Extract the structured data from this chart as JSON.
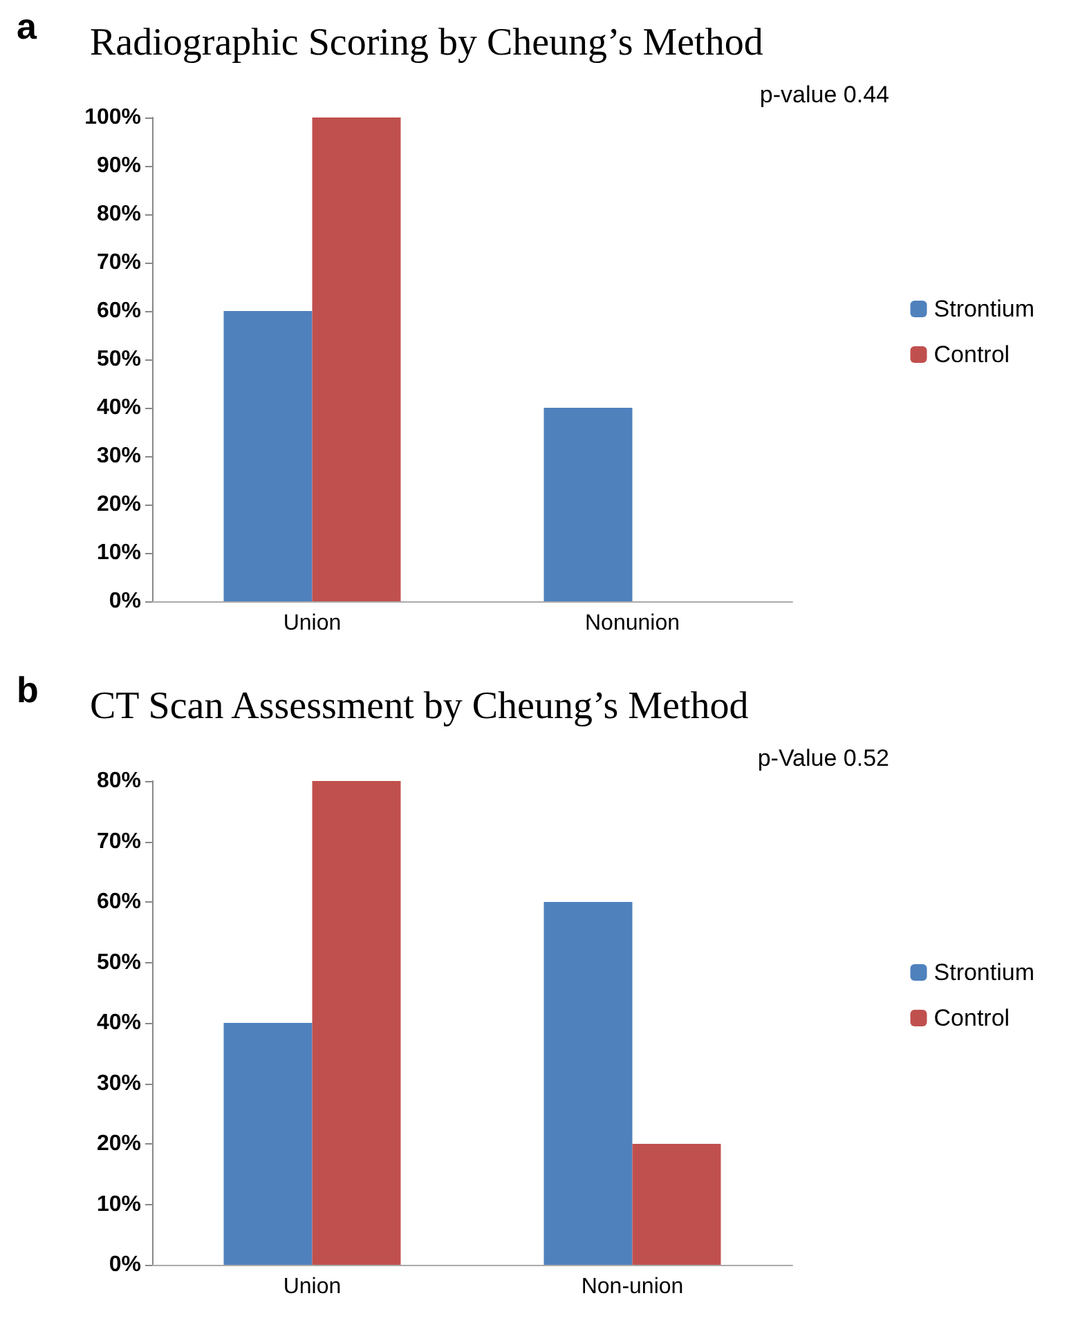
{
  "chart_data": [
    {
      "type": "bar",
      "title": "Radiographic Scoring by Cheung’s Method",
      "annotations": [
        "a",
        "p-value 0.44"
      ],
      "categories": [
        "Union",
        "Nonunion"
      ],
      "series": [
        {
          "name": "Strontium",
          "color": "#4f81bd",
          "values": [
            60,
            40
          ]
        },
        {
          "name": "Control",
          "color": "#c0504d",
          "values": [
            100,
            0
          ]
        }
      ],
      "ylim": [
        0,
        100
      ],
      "yticks": [
        {
          "value": 0,
          "label": "0%"
        },
        {
          "value": 10,
          "label": "10%"
        },
        {
          "value": 20,
          "label": "20%"
        },
        {
          "value": 30,
          "label": "30%"
        },
        {
          "value": 40,
          "label": "40%"
        },
        {
          "value": 50,
          "label": "50%"
        },
        {
          "value": 60,
          "label": "60%"
        },
        {
          "value": 70,
          "label": "70%"
        },
        {
          "value": 80,
          "label": "80%"
        },
        {
          "value": 90,
          "label": "90%"
        },
        {
          "value": 100,
          "label": "100%"
        }
      ],
      "grid": false,
      "legend": "right"
    },
    {
      "type": "bar",
      "title": "CT Scan Assessment by Cheung’s Method",
      "annotations": [
        "b",
        "p-Value 0.52"
      ],
      "categories": [
        "Union",
        "Non-union"
      ],
      "series": [
        {
          "name": "Strontium",
          "color": "#4f81bd",
          "values": [
            40,
            60
          ]
        },
        {
          "name": "Control",
          "color": "#c0504d",
          "values": [
            80,
            20
          ]
        }
      ],
      "ylim": [
        0,
        80
      ],
      "yticks": [
        {
          "value": 0,
          "label": "0%"
        },
        {
          "value": 10,
          "label": "10%"
        },
        {
          "value": 20,
          "label": "20%"
        },
        {
          "value": 30,
          "label": "30%"
        },
        {
          "value": 40,
          "label": "40%"
        },
        {
          "value": 50,
          "label": "50%"
        },
        {
          "value": 60,
          "label": "60%"
        },
        {
          "value": 70,
          "label": "70%"
        },
        {
          "value": 80,
          "label": "80%"
        }
      ],
      "grid": false,
      "legend": "right"
    }
  ]
}
